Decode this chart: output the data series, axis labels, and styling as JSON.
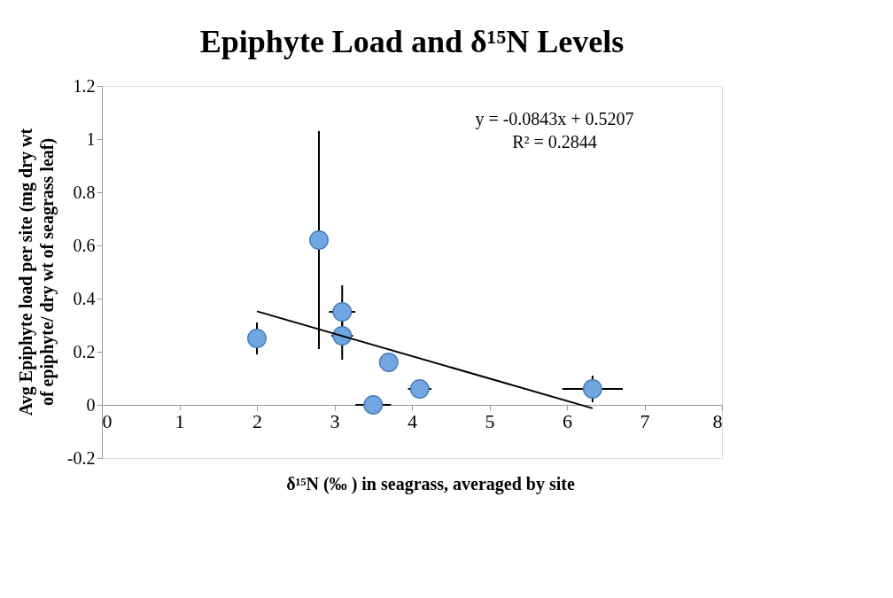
{
  "chart_data": {
    "type": "scatter",
    "title": "Epiphyte Load and δ¹⁵N Levels",
    "xlabel": "δ¹⁵N (‰ ) in seagrass, averaged by site",
    "ylabel": "Avg Epiphyte load per site (mg dry wt of epiphyte/ dry wt of seagrass leaf)",
    "annotations": [
      "y = -0.0843x + 0.5207",
      "R² = 0.2844"
    ],
    "xlim": [
      0,
      8
    ],
    "xticks": [
      0,
      1,
      2,
      3,
      4,
      5,
      6,
      7,
      8
    ],
    "ylim": [
      -0.2,
      1.2
    ],
    "yticks": [
      -0.2,
      0,
      0.2,
      0.4,
      0.6,
      0.8,
      1,
      1.2
    ],
    "grid": false,
    "series": [
      {
        "marker": "circle",
        "color": "#71a6e0",
        "x": [
          2.0,
          2.8,
          3.1,
          3.1,
          3.7,
          4.1,
          3.5,
          6.33
        ],
        "values": [
          0.25,
          0.62,
          0.35,
          0.26,
          0.16,
          0.06,
          0.0,
          0.06
        ],
        "errors": [
          0.06,
          0.41,
          0.1,
          0.09,
          null,
          null,
          null,
          0.05
        ],
        "xerrors": [
          null,
          null,
          0.17,
          0.14,
          null,
          0.15,
          0.23,
          0.39
        ]
      },
      {
        "type": "line",
        "color": "#000000",
        "line_style": "solid",
        "x": [
          2.0,
          6.33
        ],
        "values": [
          0.352,
          -0.013
        ]
      }
    ]
  }
}
